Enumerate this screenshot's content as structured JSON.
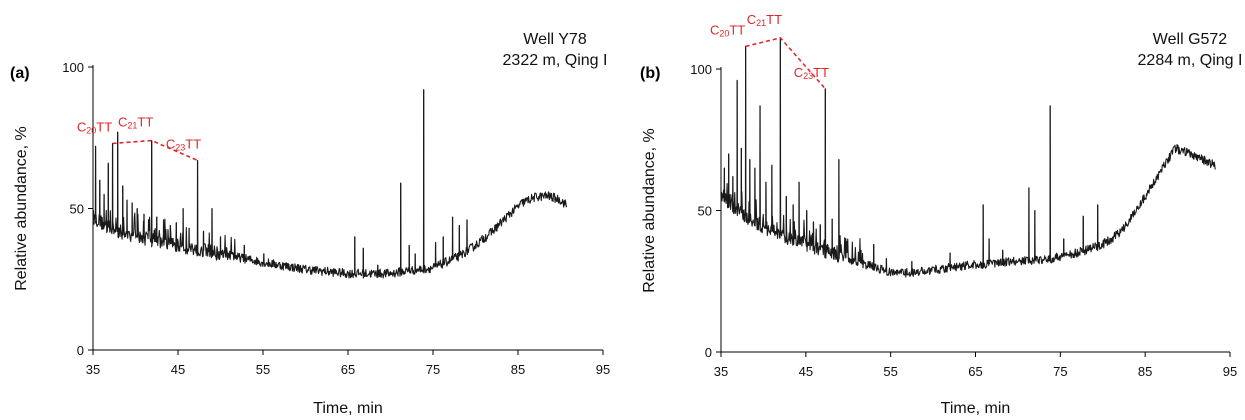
{
  "colors": {
    "trace": "#1a1a1a",
    "annotation": "#e0262b",
    "axis": "#000000"
  },
  "chart_data": [
    {
      "type": "line",
      "panel_label": "(a)",
      "title": "Well Y78",
      "subtitle": "2322 m, Qing I",
      "xlabel": "Time, min",
      "ylabel": "Relative abundance, %",
      "xlim": [
        35,
        95
      ],
      "ylim": [
        0,
        100
      ],
      "xticks": [
        "35",
        "45",
        "55",
        "65",
        "75",
        "85",
        "95"
      ],
      "yticks": [
        "0",
        "50",
        "100"
      ],
      "grid": false,
      "baseline": [
        [
          35,
          47
        ],
        [
          37,
          43
        ],
        [
          40,
          40
        ],
        [
          45,
          37
        ],
        [
          50,
          34
        ],
        [
          55,
          31
        ],
        [
          60,
          28.5
        ],
        [
          65,
          27
        ],
        [
          70,
          27
        ],
        [
          72,
          28
        ],
        [
          75,
          29
        ],
        [
          78,
          33
        ],
        [
          80,
          37
        ],
        [
          82,
          42
        ],
        [
          84,
          48
        ],
        [
          85.5,
          52
        ],
        [
          87,
          54
        ],
        [
          88.5,
          54.5
        ],
        [
          90,
          53
        ],
        [
          90.8,
          51
        ]
      ],
      "peaks": [
        {
          "x": 35.3,
          "y": 72
        },
        {
          "x": 35.8,
          "y": 60
        },
        {
          "x": 36.3,
          "y": 55
        },
        {
          "x": 36.8,
          "y": 66
        },
        {
          "x": 37.3,
          "y": 73
        },
        {
          "x": 37.9,
          "y": 77
        },
        {
          "x": 38.5,
          "y": 58
        },
        {
          "x": 39.0,
          "y": 53
        },
        {
          "x": 39.6,
          "y": 52
        },
        {
          "x": 40.2,
          "y": 50
        },
        {
          "x": 41.0,
          "y": 48
        },
        {
          "x": 41.9,
          "y": 74
        },
        {
          "x": 42.5,
          "y": 47
        },
        {
          "x": 43.3,
          "y": 46
        },
        {
          "x": 44.1,
          "y": 44
        },
        {
          "x": 44.8,
          "y": 45
        },
        {
          "x": 45.6,
          "y": 50
        },
        {
          "x": 46.3,
          "y": 43
        },
        {
          "x": 47.3,
          "y": 67
        },
        {
          "x": 48.0,
          "y": 42
        },
        {
          "x": 49.0,
          "y": 50
        },
        {
          "x": 50.0,
          "y": 40
        },
        {
          "x": 52.8,
          "y": 37
        },
        {
          "x": 55.1,
          "y": 34
        },
        {
          "x": 58.0,
          "y": 30
        },
        {
          "x": 65.8,
          "y": 40
        },
        {
          "x": 66.8,
          "y": 36
        },
        {
          "x": 68.5,
          "y": 30
        },
        {
          "x": 71.2,
          "y": 59
        },
        {
          "x": 72.2,
          "y": 37
        },
        {
          "x": 72.9,
          "y": 34
        },
        {
          "x": 73.9,
          "y": 92
        },
        {
          "x": 75.3,
          "y": 38
        },
        {
          "x": 76.2,
          "y": 40
        },
        {
          "x": 77.3,
          "y": 47
        },
        {
          "x": 78.1,
          "y": 44
        },
        {
          "x": 79.0,
          "y": 46
        }
      ],
      "annotations": [
        {
          "label": "C",
          "sub": "20",
          "suffix": "TT",
          "x": 37.3,
          "y": 73
        },
        {
          "label": "C",
          "sub": "21",
          "suffix": "TT",
          "x": 41.9,
          "y": 74
        },
        {
          "label": "C",
          "sub": "23",
          "suffix": "TT",
          "x": 47.3,
          "y": 67
        }
      ]
    },
    {
      "type": "line",
      "panel_label": "(b)",
      "title": "Well G572",
      "subtitle": "2284 m, Qing I",
      "xlabel": "Time, min",
      "ylabel": "Relative abundance, %",
      "xlim": [
        35,
        95
      ],
      "ylim": [
        0,
        100
      ],
      "xticks": [
        "35",
        "45",
        "55",
        "65",
        "75",
        "85",
        "95"
      ],
      "yticks": [
        "0",
        "50",
        "100"
      ],
      "grid": false,
      "baseline": [
        [
          35,
          55
        ],
        [
          37,
          50
        ],
        [
          40,
          44
        ],
        [
          45,
          38
        ],
        [
          50,
          33
        ],
        [
          55,
          28
        ],
        [
          58,
          28
        ],
        [
          62,
          30
        ],
        [
          66,
          31
        ],
        [
          70,
          32
        ],
        [
          74,
          33
        ],
        [
          77,
          35
        ],
        [
          80,
          38
        ],
        [
          82,
          42
        ],
        [
          84,
          50
        ],
        [
          86,
          60
        ],
        [
          87.5,
          67
        ],
        [
          88.5,
          72
        ],
        [
          89.5,
          71
        ],
        [
          91,
          69
        ],
        [
          93.3,
          66
        ]
      ],
      "peaks": [
        {
          "x": 35.4,
          "y": 65
        },
        {
          "x": 35.9,
          "y": 70
        },
        {
          "x": 36.4,
          "y": 62
        },
        {
          "x": 36.9,
          "y": 96
        },
        {
          "x": 37.4,
          "y": 72
        },
        {
          "x": 37.9,
          "y": 108
        },
        {
          "x": 38.4,
          "y": 68
        },
        {
          "x": 39.0,
          "y": 65
        },
        {
          "x": 39.6,
          "y": 87
        },
        {
          "x": 40.3,
          "y": 60
        },
        {
          "x": 41.0,
          "y": 66
        },
        {
          "x": 42.0,
          "y": 111
        },
        {
          "x": 42.7,
          "y": 55
        },
        {
          "x": 43.5,
          "y": 52
        },
        {
          "x": 44.2,
          "y": 60
        },
        {
          "x": 45.1,
          "y": 50
        },
        {
          "x": 45.9,
          "y": 46
        },
        {
          "x": 46.7,
          "y": 45
        },
        {
          "x": 47.3,
          "y": 93
        },
        {
          "x": 48.1,
          "y": 47
        },
        {
          "x": 48.9,
          "y": 68
        },
        {
          "x": 49.7,
          "y": 40
        },
        {
          "x": 51.5,
          "y": 36
        },
        {
          "x": 53.0,
          "y": 38
        },
        {
          "x": 54.5,
          "y": 33
        },
        {
          "x": 57.5,
          "y": 32
        },
        {
          "x": 62.0,
          "y": 35
        },
        {
          "x": 65.9,
          "y": 52
        },
        {
          "x": 66.6,
          "y": 40
        },
        {
          "x": 68.2,
          "y": 36
        },
        {
          "x": 71.3,
          "y": 58
        },
        {
          "x": 72.0,
          "y": 50
        },
        {
          "x": 73.8,
          "y": 87
        },
        {
          "x": 75.4,
          "y": 40
        },
        {
          "x": 77.7,
          "y": 48
        },
        {
          "x": 79.4,
          "y": 52
        }
      ],
      "annotations": [
        {
          "label": "C",
          "sub": "20",
          "suffix": "TT",
          "x": 37.9,
          "y": 108
        },
        {
          "label": "C",
          "sub": "21",
          "suffix": "TT",
          "x": 42.0,
          "y": 111
        },
        {
          "label": "C",
          "sub": "23",
          "suffix": "TT",
          "x": 47.3,
          "y": 93
        }
      ]
    }
  ]
}
